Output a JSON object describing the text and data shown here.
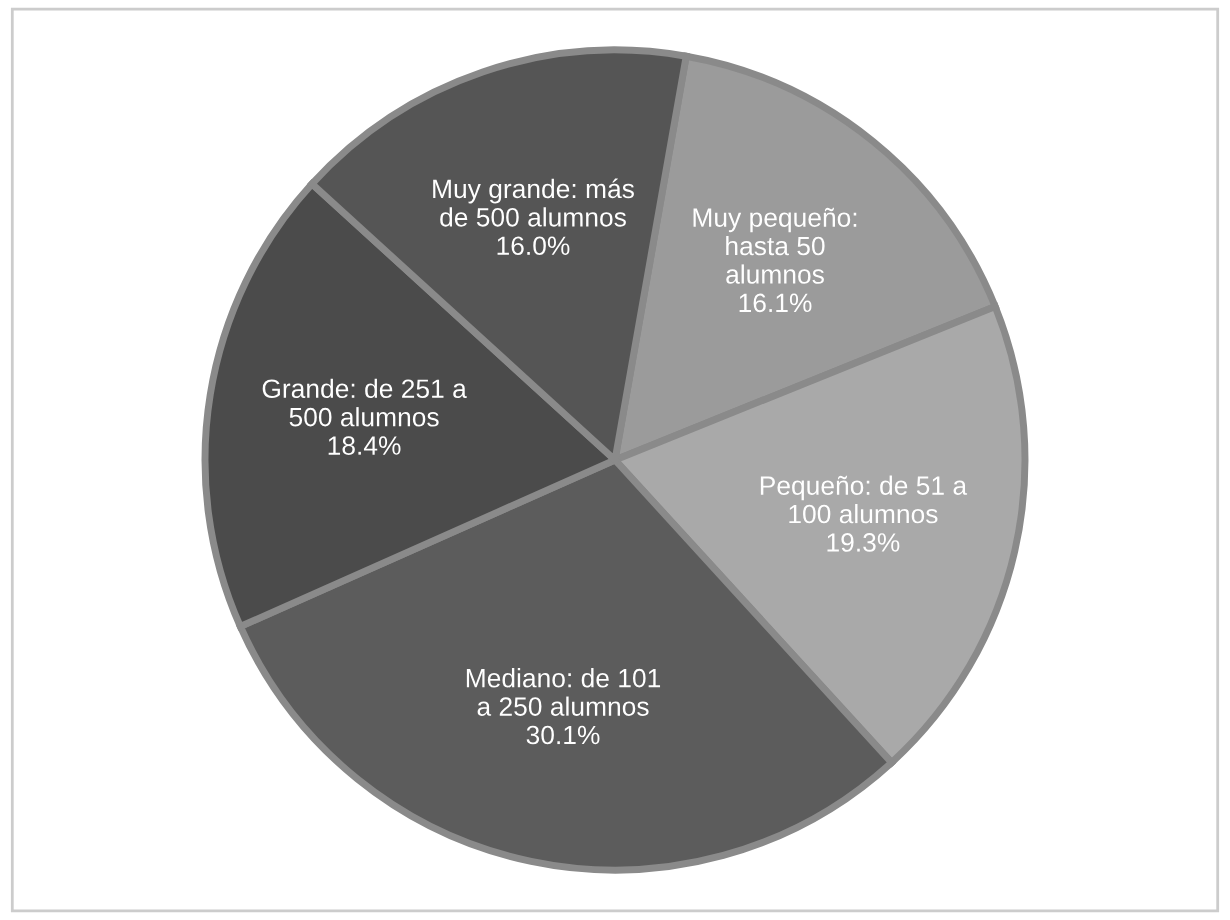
{
  "chart_data": {
    "type": "pie",
    "categories": [
      "Muy pequeño:\nhasta 50\nalumnos",
      "Pequeño: de 51 a\n100 alumnos",
      "Mediano: de 101\na 250 alumnos",
      "Grande: de 251 a\n500 alumnos",
      "Muy grande: más\nde 500 alumnos"
    ],
    "values": [
      16.1,
      19.3,
      30.1,
      18.4,
      16.0
    ],
    "value_labels": [
      "16.1%",
      "19.3%",
      "30.1%",
      "18.4%",
      "16.0%"
    ],
    "colors": [
      "#9b9b9b",
      "#a9a9a9",
      "#5c5c5c",
      "#4b4b4b",
      "#555555"
    ],
    "legend": false
  }
}
